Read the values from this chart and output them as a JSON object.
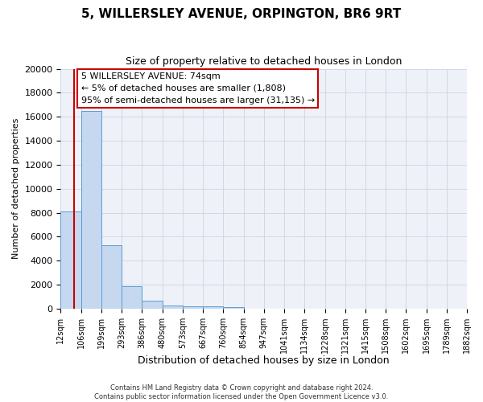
{
  "title": "5, WILLERSLEY AVENUE, ORPINGTON, BR6 9RT",
  "subtitle": "Size of property relative to detached houses in London",
  "xlabel": "Distribution of detached houses by size in London",
  "ylabel": "Number of detached properties",
  "bin_edges": [
    12,
    106,
    199,
    293,
    386,
    480,
    573,
    667,
    760,
    854,
    947,
    1041,
    1134,
    1228,
    1321,
    1415,
    1508,
    1602,
    1695,
    1789,
    1882
  ],
  "bar_heights": [
    8100,
    16500,
    5300,
    1850,
    700,
    300,
    225,
    200,
    150,
    0,
    0,
    0,
    0,
    0,
    0,
    0,
    0,
    0,
    0,
    0
  ],
  "bar_color": "#c5d8f0",
  "bar_edge_color": "#5b9bd5",
  "grid_color": "#d0d8e8",
  "background_color": "#eef2f8",
  "property_line_x": 74,
  "property_line_color": "#cc0000",
  "ylim": [
    0,
    20000
  ],
  "yticks": [
    0,
    2000,
    4000,
    6000,
    8000,
    10000,
    12000,
    14000,
    16000,
    18000,
    20000
  ],
  "annotation_text": "5 WILLERSLEY AVENUE: 74sqm\n← 5% of detached houses are smaller (1,808)\n95% of semi-detached houses are larger (31,135) →",
  "annotation_box_color": "#ffffff",
  "annotation_box_edge_color": "#cc0000",
  "footnote": "Contains HM Land Registry data © Crown copyright and database right 2024.\nContains public sector information licensed under the Open Government Licence v3.0.",
  "tick_labels": [
    "12sqm",
    "106sqm",
    "199sqm",
    "293sqm",
    "386sqm",
    "480sqm",
    "573sqm",
    "667sqm",
    "760sqm",
    "854sqm",
    "947sqm",
    "1041sqm",
    "1134sqm",
    "1228sqm",
    "1321sqm",
    "1415sqm",
    "1508sqm",
    "1602sqm",
    "1695sqm",
    "1789sqm",
    "1882sqm"
  ]
}
